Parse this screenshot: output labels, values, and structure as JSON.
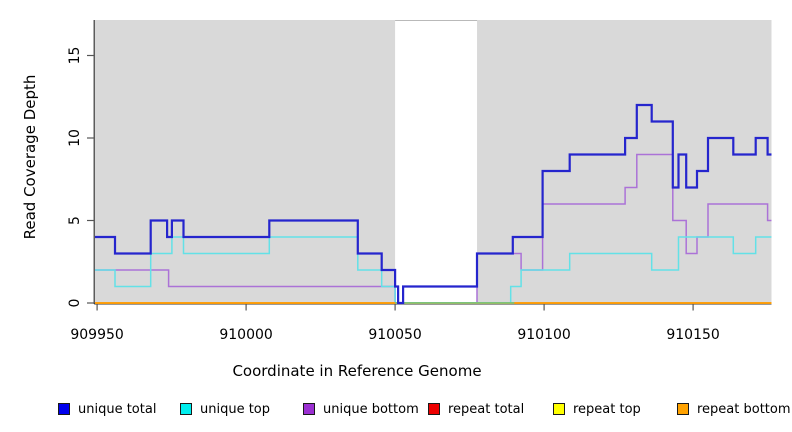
{
  "figure": {
    "xlabel": "Coordinate in Reference Genome",
    "ylabel": "Read Coverage Depth"
  },
  "chart_data": {
    "type": "line",
    "subtype": "step",
    "title": "",
    "xlabel": "Coordinate in Reference Genome",
    "ylabel": "Read Coverage Depth",
    "xlim": [
      909950,
      910176
    ],
    "ylim": [
      0,
      17
    ],
    "x_start": 909949.3,
    "x_end": 910176.3,
    "xticks": [
      909950,
      910000,
      910050,
      910100,
      910150
    ],
    "yticks": [
      0,
      5,
      10,
      15
    ],
    "grid": false,
    "legend_position": "bottom",
    "panel_bg": "#d9d9d9",
    "gap_band": {
      "x1": 910050,
      "x2": 910077.5,
      "color": "#ffffff"
    },
    "zero_overlap_segment": {
      "x1": 910050,
      "x2": 910090,
      "color": "#7cc47c"
    },
    "series": [
      {
        "name": "repeat total",
        "color": "#e60000",
        "width": 1.4,
        "steps": [
          [
            909949.3,
            0
          ]
        ]
      },
      {
        "name": "repeat top",
        "color": "#ffff00",
        "width": 1.4,
        "steps": [
          [
            909949.3,
            0
          ]
        ]
      },
      {
        "name": "unique bottom",
        "color": "#ab72d7",
        "width": 1.5,
        "steps": [
          [
            909949.3,
            2
          ],
          [
            909974,
            1
          ],
          [
            910050,
            0
          ],
          [
            910077.5,
            3
          ],
          [
            910092.3,
            2
          ],
          [
            910099.5,
            6
          ],
          [
            910127.2,
            7
          ],
          [
            910131.1,
            9
          ],
          [
            910143.2,
            5
          ],
          [
            910147.7,
            3
          ],
          [
            910151.3,
            4
          ],
          [
            910155,
            6
          ],
          [
            910175,
            5
          ]
        ]
      },
      {
        "name": "unique top",
        "color": "#63e1e7",
        "width": 1.5,
        "steps": [
          [
            909949.3,
            2
          ],
          [
            909956,
            1
          ],
          [
            909968,
            3
          ],
          [
            909975.1,
            4
          ],
          [
            909979,
            3
          ],
          [
            910007.8,
            4
          ],
          [
            910037.5,
            2
          ],
          [
            910045.5,
            1
          ],
          [
            910050,
            0
          ],
          [
            910088.8,
            1
          ],
          [
            910092.3,
            2
          ],
          [
            910108.6,
            3
          ],
          [
            910136.1,
            2
          ],
          [
            910145.1,
            4
          ],
          [
            910163.5,
            3
          ],
          [
            910171,
            4
          ]
        ]
      },
      {
        "name": "repeat bottom",
        "color": "#ff9d0a",
        "width": 1.7,
        "steps": [
          [
            909949.3,
            0
          ]
        ]
      },
      {
        "name": "unique total",
        "color": "#2525cd",
        "width": 2.2,
        "steps": [
          [
            909949.3,
            4
          ],
          [
            909956,
            3
          ],
          [
            909968,
            5
          ],
          [
            909973.5,
            4
          ],
          [
            909975.1,
            5
          ],
          [
            909979,
            4
          ],
          [
            910007.8,
            5
          ],
          [
            910037.5,
            3
          ],
          [
            910045.5,
            2
          ],
          [
            910050,
            1
          ],
          [
            910051,
            0
          ],
          [
            910052.7,
            1
          ],
          [
            910077.5,
            3
          ],
          [
            910089.5,
            4
          ],
          [
            910099.5,
            8
          ],
          [
            910108.6,
            9
          ],
          [
            910127.2,
            10
          ],
          [
            910131.1,
            12
          ],
          [
            910136.1,
            11
          ],
          [
            910143.2,
            7
          ],
          [
            910145.1,
            9
          ],
          [
            910147.7,
            7
          ],
          [
            910151.3,
            8
          ],
          [
            910155,
            10
          ],
          [
            910163.5,
            9
          ],
          [
            910171,
            10
          ],
          [
            910175,
            9
          ]
        ]
      }
    ]
  },
  "legend": {
    "items": [
      {
        "label": "unique total",
        "fill": "#0000ee",
        "border": "#1a1a1a"
      },
      {
        "label": "unique top",
        "fill": "#00eeee",
        "border": "#1a1a1a"
      },
      {
        "label": "unique bottom",
        "fill": "#9b30d2",
        "border": "#1a1a1a"
      },
      {
        "label": "repeat total",
        "fill": "#ee0000",
        "border": "#1a1a1a"
      },
      {
        "label": "repeat top",
        "fill": "#ffff00",
        "border": "#1a1a1a"
      },
      {
        "label": "repeat bottom",
        "fill": "#ffa200",
        "border": "#1a1a1a"
      }
    ]
  }
}
